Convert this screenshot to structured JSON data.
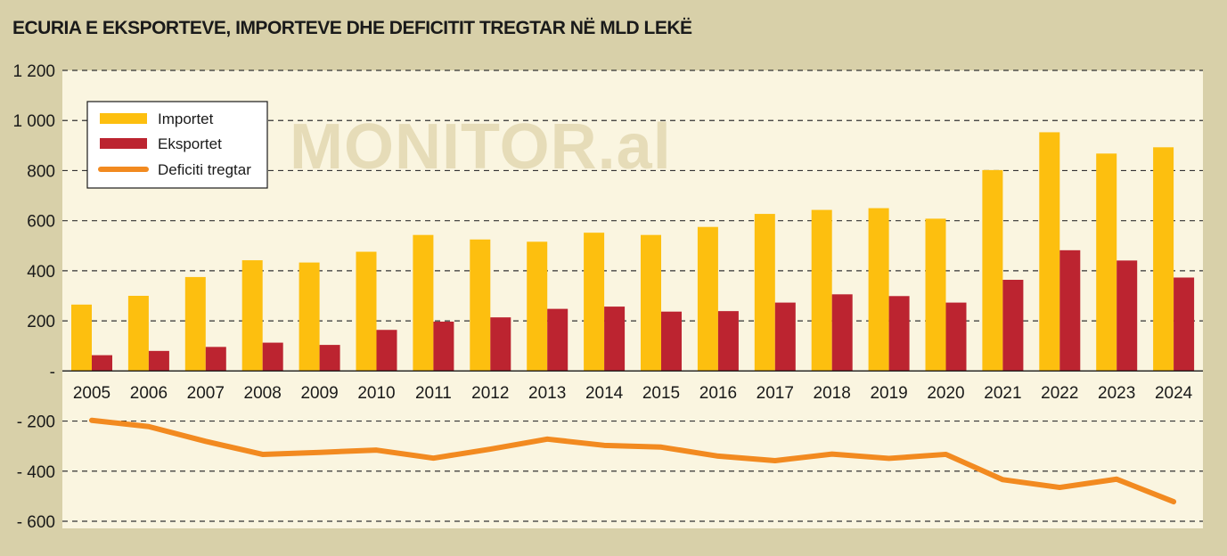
{
  "watermark": "MONITOR.al",
  "chart_data": {
    "type": "bar",
    "title": "ECURIA E EKSPORTEVE, IMPORTEVE DHE DEFICITIT TREGTAR NË MLD LEKË",
    "xlabel": "",
    "ylabel": "",
    "categories": [
      "2005",
      "2006",
      "2007",
      "2008",
      "2009",
      "2010",
      "2011",
      "2012",
      "2013",
      "2014",
      "2015",
      "2016",
      "2017",
      "2018",
      "2019",
      "2020",
      "2021",
      "2022",
      "2023",
      "2024"
    ],
    "ylim": [
      -600,
      1200
    ],
    "yticks": [
      1200,
      1000,
      800,
      600,
      400,
      200,
      0,
      -200,
      -400,
      -600
    ],
    "ytick_labels": [
      "1 200",
      "1 000",
      "800",
      "600",
      "400",
      "200",
      "-",
      "- 200",
      "- 400",
      "- 600"
    ],
    "grid": true,
    "legend_position": "top-left",
    "series": [
      {
        "name": "Importet",
        "kind": "bar",
        "color": "#fdbf0f",
        "values": [
          265,
          300,
          375,
          442,
          433,
          476,
          543,
          525,
          516,
          552,
          543,
          575,
          627,
          643,
          650,
          608,
          802,
          953,
          868,
          893
        ]
      },
      {
        "name": "Eksportet",
        "kind": "bar",
        "color": "#bc2430",
        "values": [
          63,
          80,
          96,
          113,
          104,
          164,
          197,
          214,
          248,
          257,
          237,
          239,
          273,
          306,
          299,
          273,
          364,
          482,
          441,
          373
        ]
      },
      {
        "name": "Deficiti tregtar",
        "kind": "line",
        "color": "#f28a20",
        "values": [
          -197,
          -222,
          -281,
          -333,
          -325,
          -316,
          -348,
          -312,
          -272,
          -297,
          -304,
          -340,
          -358,
          -332,
          -349,
          -333,
          -434,
          -465,
          -432,
          -522
        ]
      }
    ]
  }
}
